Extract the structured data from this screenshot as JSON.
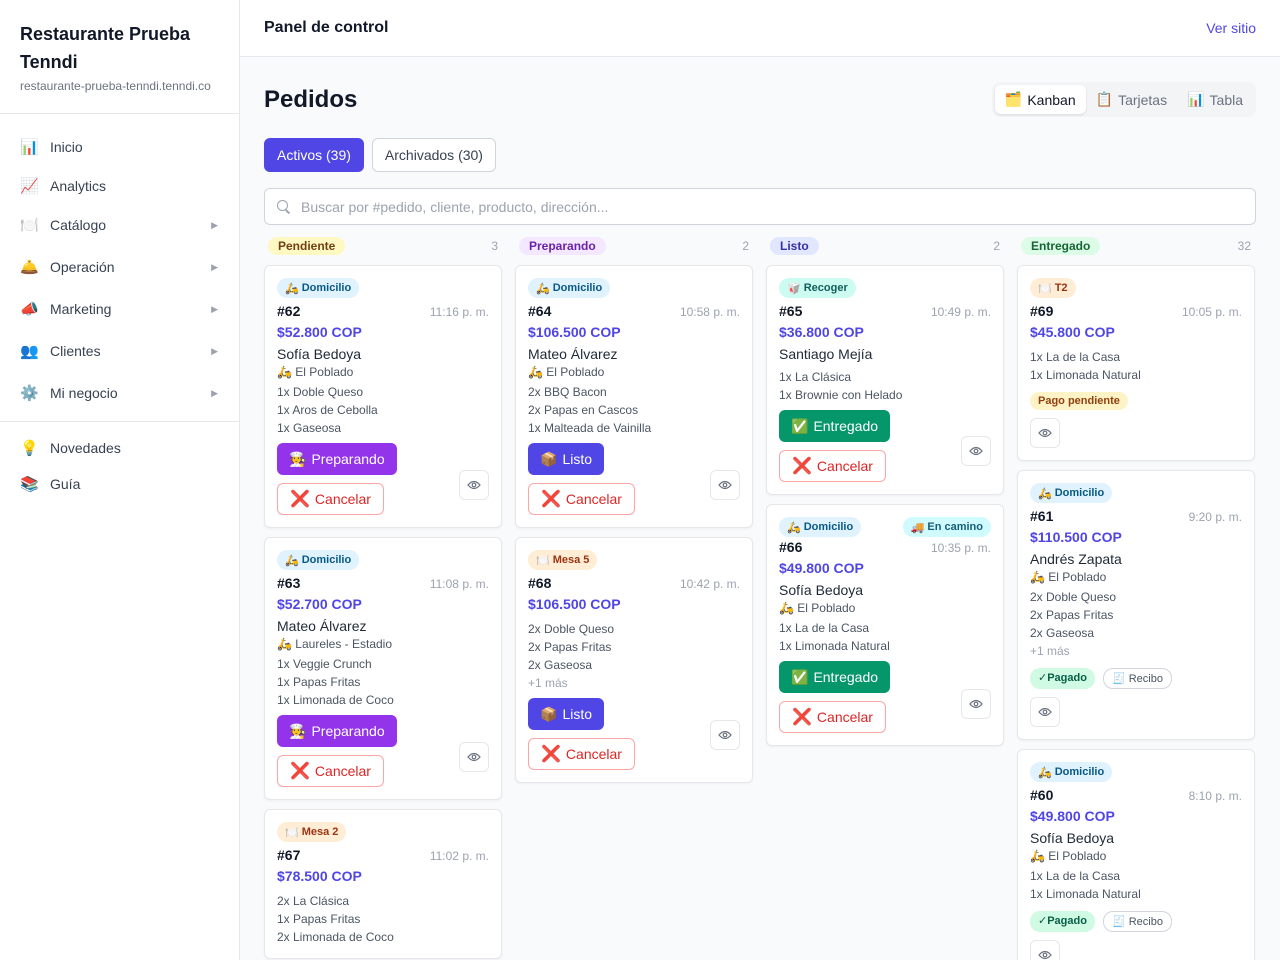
{
  "sidebar": {
    "brand_name": "Restaurante Prueba Tenndi",
    "brand_domain": "restaurante-prueba-tenndi.tenndi.co",
    "items": [
      {
        "icon": "📊",
        "label": "Inicio"
      },
      {
        "icon": "📈",
        "label": "Analytics"
      },
      {
        "icon": "🍽️",
        "label": "Catálogo",
        "arrow": "▶"
      },
      {
        "icon": "🛎️",
        "label": "Operación",
        "arrow": "▶"
      },
      {
        "icon": "📣",
        "label": "Marketing",
        "arrow": "▶"
      },
      {
        "icon": "👥",
        "label": "Clientes",
        "arrow": "▶"
      },
      {
        "icon": "⚙️",
        "label": "Mi negocio",
        "arrow": "▶"
      }
    ],
    "bottom_items": [
      {
        "icon": "💡",
        "label": "Novedades"
      },
      {
        "icon": "📚",
        "label": "Guía"
      }
    ]
  },
  "header": {
    "title": "Panel de control",
    "site_link": "Ver sitio"
  },
  "main": {
    "title": "Pedidos",
    "views": [
      {
        "icon": "🗂️",
        "label": "Kanban"
      },
      {
        "icon": "📋",
        "label": "Tarjetas"
      },
      {
        "icon": "📊",
        "label": "Tabla"
      }
    ],
    "filters": {
      "active": "Activos (39)",
      "archived": "Archivados (30)"
    },
    "search_placeholder": "Buscar por #pedido, cliente, producto, dirección..."
  },
  "columns": [
    {
      "label": "Pendiente",
      "count": "3"
    },
    {
      "label": "Preparando",
      "count": "2"
    },
    {
      "label": "Listo",
      "count": "2"
    },
    {
      "label": "Entregado",
      "count": "32"
    }
  ],
  "labels": {
    "preparando": "Preparando",
    "listo": "Listo",
    "entregado": "Entregado",
    "cancelar": "Cancelar",
    "domicilio": "Domicilio",
    "recoger": "Recoger",
    "en_camino": "En camino",
    "pago_pendiente": "Pago pendiente",
    "pagado": "Pagado",
    "recibo": "Recibo",
    "icon_prep": "🧑‍🍳",
    "icon_listo": "📦",
    "icon_entregado": "✅",
    "icon_cancel": "❌",
    "icon_moto": "🛵",
    "icon_mesa": "🍽️",
    "icon_recoger": "🥡",
    "icon_camion": "🚚",
    "icon_check": "✓",
    "icon_recibo": "🧾"
  },
  "orders": {
    "o62": {
      "id": "#62",
      "time": "11:16 p. m.",
      "price": "$52.800 COP",
      "customer": "Sofía Bedoya",
      "zone": "El Poblado",
      "items": [
        "1x Doble Queso",
        "1x Aros de Cebolla",
        "1x Gaseosa"
      ]
    },
    "o63": {
      "id": "#63",
      "time": "11:08 p. m.",
      "price": "$52.700 COP",
      "customer": "Mateo Álvarez",
      "zone": "Laureles - Estadio",
      "items": [
        "1x Veggie Crunch",
        "1x Papas Fritas",
        "1x Limonada de Coco"
      ]
    },
    "o67": {
      "id": "#67",
      "time": "11:02 p. m.",
      "price": "$78.500 COP",
      "table": "Mesa 2",
      "items": [
        "2x La Clásica",
        "1x Papas Fritas",
        "2x Limonada de Coco"
      ]
    },
    "o64": {
      "id": "#64",
      "time": "10:58 p. m.",
      "price": "$106.500 COP",
      "customer": "Mateo Álvarez",
      "zone": "El Poblado",
      "items": [
        "2x BBQ Bacon",
        "2x Papas en Cascos",
        "1x Malteada de Vainilla"
      ]
    },
    "o68": {
      "id": "#68",
      "time": "10:42 p. m.",
      "price": "$106.500 COP",
      "table": "Mesa 5",
      "items": [
        "2x Doble Queso",
        "2x Papas Fritas",
        "2x Gaseosa"
      ],
      "more": "+1 más"
    },
    "o65": {
      "id": "#65",
      "time": "10:49 p. m.",
      "price": "$36.800 COP",
      "customer": "Santiago Mejía",
      "items": [
        "1x La Clásica",
        "1x Brownie con Helado"
      ]
    },
    "o66": {
      "id": "#66",
      "time": "10:35 p. m.",
      "price": "$49.800 COP",
      "customer": "Sofía Bedoya",
      "zone": "El Poblado",
      "items": [
        "1x La de la Casa",
        "1x Limonada Natural"
      ]
    },
    "o69": {
      "id": "#69",
      "time": "10:05 p. m.",
      "price": "$45.800 COP",
      "table": "T2",
      "items": [
        "1x La de la Casa",
        "1x Limonada Natural"
      ]
    },
    "o61": {
      "id": "#61",
      "time": "9:20 p. m.",
      "price": "$110.500 COP",
      "customer": "Andrés Zapata",
      "zone": "El Poblado",
      "items": [
        "2x Doble Queso",
        "2x Papas Fritas",
        "2x Gaseosa"
      ],
      "more": "+1 más"
    },
    "o60": {
      "id": "#60",
      "time": "8:10 p. m.",
      "price": "$49.800 COP",
      "customer": "Sofía Bedoya",
      "zone": "El Poblado",
      "items": [
        "1x La de la Casa",
        "1x Limonada Natural"
      ]
    }
  }
}
